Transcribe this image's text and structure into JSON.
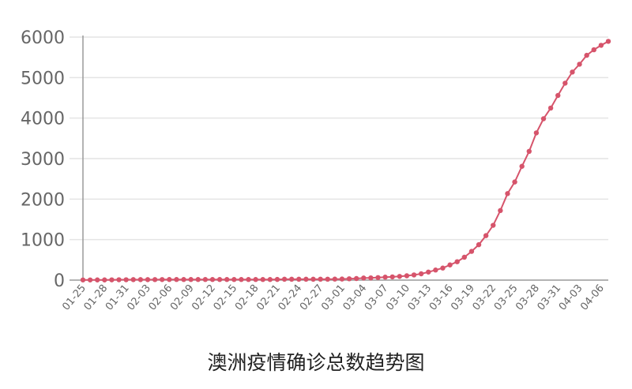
{
  "chart_data": {
    "type": "line",
    "title": "澳洲疫情确诊总数趋势图",
    "xlabel": "",
    "ylabel": "",
    "ylim": [
      0,
      6000
    ],
    "yticks": [
      0,
      1000,
      2000,
      3000,
      4000,
      5000,
      6000
    ],
    "grid": true,
    "colors": {
      "line": "#d6546b",
      "axis": "#9a9a9a",
      "grid": "#e4e4e4",
      "tick_text": "#666666"
    },
    "x": [
      "01-25",
      "01-26",
      "01-27",
      "01-28",
      "01-29",
      "01-30",
      "01-31",
      "02-01",
      "02-02",
      "02-03",
      "02-04",
      "02-05",
      "02-06",
      "02-07",
      "02-08",
      "02-09",
      "02-10",
      "02-11",
      "02-12",
      "02-13",
      "02-14",
      "02-15",
      "02-16",
      "02-17",
      "02-18",
      "02-19",
      "02-20",
      "02-21",
      "02-22",
      "02-23",
      "02-24",
      "02-25",
      "02-26",
      "02-27",
      "02-28",
      "02-29",
      "03-01",
      "03-02",
      "03-03",
      "03-04",
      "03-05",
      "03-06",
      "03-07",
      "03-08",
      "03-09",
      "03-10",
      "03-11",
      "03-12",
      "03-13",
      "03-14",
      "03-15",
      "03-16",
      "03-17",
      "03-18",
      "03-19",
      "03-20",
      "03-21",
      "03-22",
      "03-23",
      "03-24",
      "03-25",
      "03-26",
      "03-27",
      "03-28",
      "03-29",
      "03-30",
      "03-31",
      "04-01",
      "04-02",
      "04-03",
      "04-04",
      "04-05",
      "04-06",
      "04-07"
    ],
    "xtick_labels": [
      "01-25",
      "01-28",
      "01-31",
      "02-03",
      "02-06",
      "02-09",
      "02-12",
      "02-15",
      "02-18",
      "02-21",
      "02-24",
      "02-27",
      "03-01",
      "03-04",
      "03-07",
      "03-10",
      "03-13",
      "03-16",
      "03-19",
      "03-22",
      "03-25",
      "03-28",
      "03-31",
      "04-03",
      "04-06"
    ],
    "values": [
      4,
      4,
      5,
      5,
      7,
      9,
      9,
      12,
      12,
      12,
      13,
      14,
      15,
      15,
      15,
      15,
      15,
      15,
      15,
      15,
      15,
      15,
      15,
      15,
      15,
      15,
      15,
      17,
      22,
      22,
      22,
      22,
      22,
      23,
      23,
      25,
      27,
      33,
      39,
      52,
      55,
      63,
      74,
      80,
      92,
      107,
      128,
      156,
      199,
      249,
      298,
      375,
      454,
      565,
      709,
      874,
      1098,
      1353,
      1717,
      2136,
      2423,
      2810,
      3179,
      3635,
      3984,
      4248,
      4559,
      4862,
      5136,
      5330,
      5550,
      5687,
      5797,
      5895
    ]
  }
}
